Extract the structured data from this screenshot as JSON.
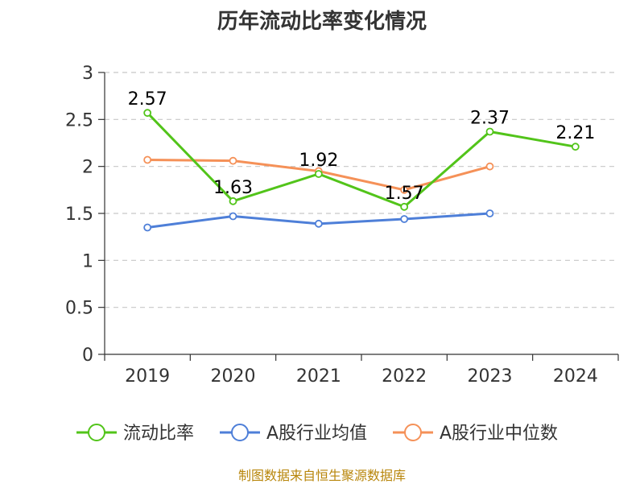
{
  "chart_data": {
    "type": "line",
    "title": "历年流动比率变化情况",
    "categories": [
      "2019",
      "2020",
      "2021",
      "2022",
      "2023",
      "2024"
    ],
    "ylim": [
      0,
      3
    ],
    "yticks": [
      "0",
      "0.5",
      "1",
      "1.5",
      "2",
      "2.5",
      "3"
    ],
    "grid": true,
    "legend_position": "bottom",
    "series": [
      {
        "name": "流动比率",
        "color": "#52c41a",
        "values": [
          2.57,
          1.63,
          1.92,
          1.57,
          2.37,
          2.21
        ],
        "labels": [
          "2.57",
          "1.63",
          "1.92",
          "1.57",
          "2.37",
          "2.21"
        ]
      },
      {
        "name": "A股行业均值",
        "color": "#4e7fd8",
        "values": [
          1.35,
          1.47,
          1.39,
          1.44,
          1.5,
          null
        ]
      },
      {
        "name": "A股行业中位数",
        "color": "#f59158",
        "values": [
          2.07,
          2.06,
          1.95,
          1.75,
          2.0,
          null
        ]
      }
    ]
  },
  "source_note": "制图数据来自恒生聚源数据库"
}
